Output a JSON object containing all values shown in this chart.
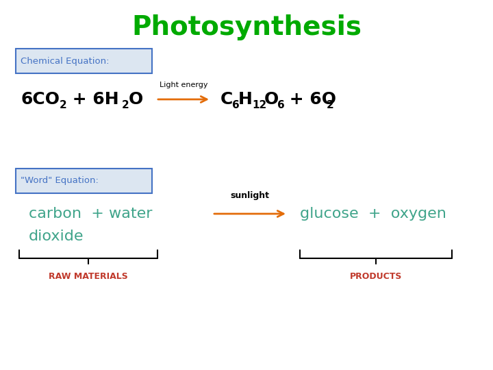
{
  "title": "Photosynthesis",
  "title_color": "#00aa00",
  "title_fontsize": 28,
  "bg_color": "#ffffff",
  "box1_label": "Chemical Equation:",
  "box2_label": "\"Word\" Equation:",
  "box_color": "#4472c4",
  "box_bg": "#dce6f1",
  "arrow_label_top": "Light energy",
  "arrow_label_bottom": "sunlight",
  "arrow_color": "#e36c09",
  "word_left1": "carbon  + water",
  "word_left2": "dioxide",
  "word_right": "glucose  +  oxygen",
  "word_color": "#3fa48a",
  "raw_label": "RAW MATERIALS",
  "products_label": "PRODUCTS",
  "label_color": "#c0392b",
  "black_color": "#000000",
  "brace_color": "#000000",
  "eq_fontsize": 18,
  "sub_fontsize": 11,
  "word_fontsize": 16
}
